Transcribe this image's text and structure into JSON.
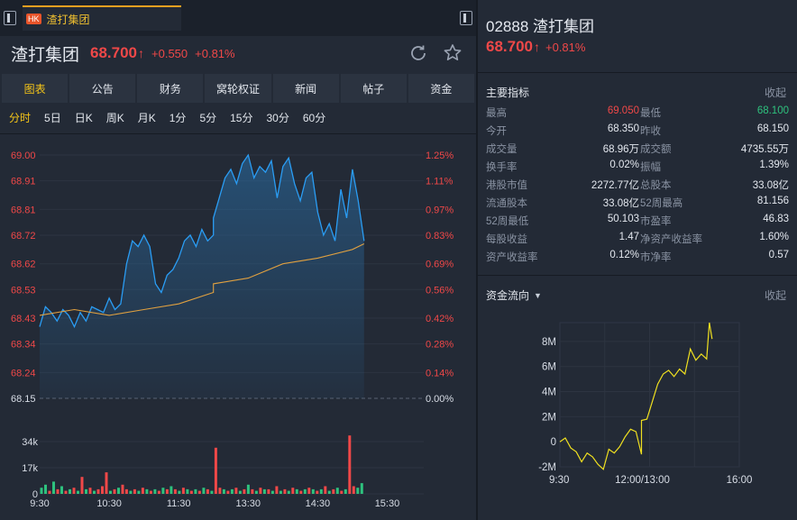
{
  "tab": {
    "market": "HK",
    "label": "渣打集团"
  },
  "header": {
    "name": "渣打集团",
    "price": "68.700",
    "change": "+0.550",
    "change_pct": "+0.81%"
  },
  "tabs": [
    "图表",
    "公告",
    "财务",
    "窝轮权证",
    "新闻",
    "帖子",
    "资金"
  ],
  "periods": [
    "分时",
    "5日",
    "日K",
    "周K",
    "月K",
    "1分",
    "5分",
    "15分",
    "30分",
    "60分"
  ],
  "colors": {
    "up": "#f04848",
    "down": "#2ec27e",
    "accent": "#f5c518",
    "price_line": "#2a9df4",
    "avg_line": "#e0a040"
  },
  "chart_data": [
    {
      "type": "line",
      "y_ticks_price": [
        "69.00",
        "68.91",
        "68.81",
        "68.72",
        "68.62",
        "68.53",
        "68.43",
        "68.34",
        "68.24",
        "68.15"
      ],
      "y_ticks_pct": [
        "1.25%",
        "1.11%",
        "0.97%",
        "0.83%",
        "0.69%",
        "0.56%",
        "0.42%",
        "0.28%",
        "0.14%",
        "0.00%"
      ],
      "x_ticks": [
        "9:30",
        "10:30",
        "11:30",
        "13:30",
        "14:30",
        "15:30"
      ],
      "ylim": [
        68.15,
        69.0
      ],
      "prev_close": 68.15,
      "series": [
        {
          "x": [
            "9:30",
            "9:35",
            "9:40",
            "9:45",
            "9:50",
            "9:55",
            "10:00",
            "10:05",
            "10:10",
            "10:15",
            "10:20",
            "10:25",
            "10:30",
            "10:35",
            "10:40",
            "10:45",
            "10:50",
            "10:55",
            "11:00",
            "11:05",
            "11:10",
            "11:15",
            "11:20",
            "11:25",
            "11:30",
            "11:35",
            "11:40",
            "11:45",
            "11:50",
            "11:55",
            "12:00",
            "13:00",
            "13:05",
            "13:10",
            "13:15",
            "13:20",
            "13:25",
            "13:30",
            "13:35",
            "13:40",
            "13:45",
            "13:50",
            "13:55",
            "14:00",
            "14:05",
            "14:10",
            "14:15",
            "14:20",
            "14:25",
            "14:30",
            "14:35",
            "14:40",
            "14:45",
            "14:50",
            "14:55",
            "15:00",
            "15:05",
            "15:10"
          ],
          "values": [
            68.4,
            68.47,
            68.45,
            68.42,
            68.46,
            68.44,
            68.4,
            68.45,
            68.42,
            68.47,
            68.46,
            68.45,
            68.5,
            68.46,
            68.48,
            68.62,
            68.7,
            68.68,
            68.72,
            68.68,
            68.55,
            68.52,
            68.58,
            68.6,
            68.64,
            68.7,
            68.72,
            68.68,
            68.74,
            68.7,
            68.72,
            68.78,
            68.85,
            68.92,
            68.95,
            68.9,
            68.97,
            69.0,
            68.92,
            68.96,
            68.94,
            68.98,
            68.85,
            68.96,
            68.99,
            68.9,
            68.84,
            68.92,
            68.94,
            68.8,
            68.72,
            68.76,
            68.7,
            68.88,
            68.78,
            68.95,
            68.84,
            68.7
          ]
        },
        {
          "x": [
            "9:30",
            "10:00",
            "10:30",
            "11:00",
            "11:30",
            "12:00",
            "13:00",
            "13:30",
            "14:00",
            "14:30",
            "15:00",
            "15:10"
          ],
          "values": [
            68.44,
            68.46,
            68.44,
            68.46,
            68.48,
            68.52,
            68.55,
            68.57,
            68.62,
            68.64,
            68.67,
            68.69
          ]
        }
      ],
      "volume_ticks": [
        "34k",
        "17k",
        "0"
      ]
    },
    {
      "type": "line",
      "y_ticks": [
        "8M",
        "6M",
        "4M",
        "2M",
        "0",
        "-2M"
      ],
      "x_ticks": [
        "9:30",
        "12:00/13:00",
        "16:00"
      ],
      "ylim": [
        -2,
        9.5
      ],
      "series": [
        {
          "x": [
            "9:30",
            "9:40",
            "9:50",
            "10:00",
            "10:10",
            "10:20",
            "10:30",
            "10:40",
            "10:50",
            "11:00",
            "11:10",
            "11:20",
            "11:30",
            "11:40",
            "11:50",
            "12:00",
            "13:00",
            "13:10",
            "13:20",
            "13:30",
            "13:40",
            "13:50",
            "14:00",
            "14:10",
            "14:20",
            "14:30",
            "14:40",
            "14:50",
            "15:00",
            "15:05",
            "15:10"
          ],
          "values": [
            0.0,
            0.3,
            -0.5,
            -0.8,
            -1.6,
            -0.9,
            -1.2,
            -1.8,
            -2.2,
            -0.6,
            -0.9,
            -0.4,
            0.4,
            1.0,
            0.8,
            -1.0,
            1.7,
            1.8,
            3.2,
            4.6,
            5.4,
            5.7,
            5.2,
            5.8,
            5.4,
            7.4,
            6.5,
            7.0,
            6.6,
            9.5,
            8.2
          ]
        }
      ]
    }
  ],
  "volume": {
    "bars": [
      4,
      6,
      2,
      8,
      3,
      5,
      2,
      3,
      4,
      2,
      11,
      3,
      4,
      2,
      3,
      5,
      14,
      2,
      3,
      4,
      6,
      3,
      2,
      3,
      2,
      4,
      3,
      2,
      3,
      2,
      4,
      3,
      5,
      3,
      2,
      4,
      3,
      2,
      3,
      2,
      4,
      3,
      2,
      30,
      4,
      3,
      2,
      3,
      4,
      2,
      3,
      6,
      3,
      2,
      4,
      3,
      3,
      2,
      5,
      2,
      3,
      2,
      4,
      3,
      2,
      3,
      4,
      3,
      2,
      3,
      5,
      2,
      3,
      4,
      2,
      3,
      38,
      5,
      4,
      7
    ],
    "colors": [
      "g",
      "g",
      "r",
      "g",
      "r",
      "g",
      "r",
      "g",
      "r",
      "g",
      "r",
      "g",
      "r",
      "g",
      "r",
      "r",
      "r",
      "g",
      "r",
      "g",
      "r",
      "r",
      "g",
      "r",
      "g",
      "r",
      "g",
      "r",
      "g",
      "r",
      "g",
      "r",
      "g",
      "r",
      "g",
      "r",
      "g",
      "r",
      "g",
      "r",
      "g",
      "r",
      "g",
      "r",
      "r",
      "g",
      "r",
      "g",
      "r",
      "g",
      "r",
      "g",
      "r",
      "g",
      "r",
      "g",
      "r",
      "g",
      "r",
      "g",
      "r",
      "g",
      "r",
      "g",
      "r",
      "g",
      "r",
      "g",
      "r",
      "g",
      "r",
      "g",
      "r",
      "g",
      "r",
      "g",
      "r",
      "r",
      "g",
      "g"
    ]
  },
  "quote": {
    "code": "02888",
    "name": "渣打集团",
    "price": "68.700",
    "change_pct": "+0.81%"
  },
  "indicators": {
    "title": "主要指标",
    "collapse": "收起",
    "rows": [
      {
        "l1": "最高",
        "v1": "69.050",
        "c1": "up",
        "l2": "最低",
        "v2": "68.100",
        "c2": "down"
      },
      {
        "l1": "今开",
        "v1": "68.350",
        "c1": "",
        "l2": "昨收",
        "v2": "68.150",
        "c2": ""
      },
      {
        "l1": "成交量",
        "v1": "68.96万",
        "c1": "",
        "l2": "成交额",
        "v2": "4735.55万",
        "c2": ""
      },
      {
        "l1": "换手率",
        "v1": "0.02%",
        "c1": "",
        "l2": "振幅",
        "v2": "1.39%",
        "c2": ""
      },
      {
        "l1": "港股市值",
        "v1": "2272.77亿",
        "c1": "",
        "l2": "总股本",
        "v2": "33.08亿",
        "c2": ""
      },
      {
        "l1": "流通股本",
        "v1": "33.08亿",
        "c1": "",
        "l2": "52周最高",
        "v2": "81.156",
        "c2": ""
      },
      {
        "l1": "52周最低",
        "v1": "50.103",
        "c1": "",
        "l2": "市盈率",
        "v2": "46.83",
        "c2": ""
      },
      {
        "l1": "每股收益",
        "v1": "1.47",
        "c1": "",
        "l2": "净资产收益率",
        "v2": "1.60%",
        "c2": ""
      },
      {
        "l1": "资产收益率",
        "v1": "0.12%",
        "c1": "",
        "l2": "市净率",
        "v2": "0.57",
        "c2": ""
      }
    ]
  },
  "fund_flow": {
    "title": "资金流向",
    "collapse": "收起"
  },
  "icons": {
    "refresh": "refresh-icon",
    "star": "star-icon",
    "panel": "panel-toggle-icon",
    "up_arrow": "up-arrow-icon",
    "dropdown": "caret-down-icon"
  }
}
